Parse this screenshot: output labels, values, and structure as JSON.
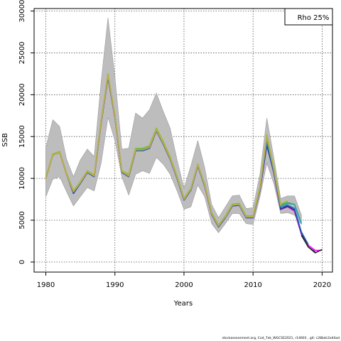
{
  "chart_data": {
    "type": "line",
    "xlabel": "Years",
    "ylabel": "SSB",
    "xlim": [
      1978.3,
      2021.5
    ],
    "ylim": [
      -1200,
      30300
    ],
    "x_ticks": [
      1980,
      1990,
      2000,
      2010,
      2020
    ],
    "y_ticks": [
      0,
      5000,
      10000,
      15000,
      20000,
      25000,
      30000
    ],
    "grid": true,
    "legend": {
      "placement": "top-right",
      "text": "Rho 25%"
    },
    "band": {
      "years": [
        1980,
        1981,
        1982,
        1983,
        1984,
        1985,
        1986,
        1987,
        1988,
        1989,
        1990,
        1991,
        1992,
        1993,
        1994,
        1995,
        1996,
        1997,
        1998,
        1999,
        2000,
        2001,
        2002,
        2003,
        2004,
        2005,
        2006,
        2007,
        2008,
        2009,
        2010,
        2011,
        2012,
        2013,
        2014,
        2015,
        2016,
        2017
      ],
      "lower": [
        7800,
        9900,
        10200,
        8400,
        6700,
        7800,
        8900,
        8500,
        11800,
        17300,
        14500,
        10200,
        8000,
        10500,
        10900,
        10600,
        12500,
        11700,
        10500,
        8500,
        6300,
        6600,
        9200,
        7800,
        4600,
        3500,
        4600,
        5800,
        5800,
        4600,
        4500,
        7800,
        11800,
        9400,
        5800,
        5900,
        5600,
        4500
      ],
      "upper": [
        13700,
        17000,
        16200,
        12300,
        10200,
        12200,
        13500,
        12600,
        21500,
        29200,
        22100,
        13500,
        13600,
        17800,
        17200,
        18200,
        20200,
        18000,
        16000,
        12200,
        8800,
        11500,
        14500,
        11300,
        6900,
        5300,
        6600,
        7900,
        8000,
        6400,
        6500,
        10500,
        17200,
        12500,
        7600,
        7900,
        7900,
        5600
      ]
    },
    "series": [
      {
        "color": "#ff00ff",
        "x": [
          1980,
          1981,
          1982,
          1983,
          1984,
          1985,
          1986,
          1987,
          1988,
          1989,
          1990,
          1991,
          1992,
          1993,
          1994,
          1995,
          1996,
          1997,
          1998,
          1999,
          2000,
          2001,
          2002,
          2003,
          2004,
          2005,
          2006,
          2007,
          2008,
          2009,
          2010,
          2011,
          2012,
          2013,
          2014,
          2015,
          2016,
          2017,
          2018,
          2019,
          2020
        ],
        "values": [
          10000,
          12800,
          13100,
          10500,
          8300,
          9400,
          10700,
          10200,
          16600,
          22100,
          17300,
          10700,
          10200,
          13300,
          13300,
          13600,
          15700,
          14100,
          12300,
          10000,
          7400,
          8600,
          11500,
          9100,
          5700,
          4200,
          5300,
          6700,
          6800,
          5300,
          5300,
          8600,
          14000,
          10700,
          6300,
          6600,
          6100,
          3300,
          2000,
          1400,
          1400
        ]
      },
      {
        "color": "#1f2a86",
        "x": [
          1980,
          1981,
          1982,
          1983,
          1984,
          1985,
          1986,
          1987,
          1988,
          1989,
          1990,
          1991,
          1992,
          1993,
          1994,
          1995,
          1996,
          1997,
          1998,
          1999,
          2000,
          2001,
          2002,
          2003,
          2004,
          2005,
          2006,
          2007,
          2008,
          2009,
          2010,
          2011,
          2012,
          2013,
          2014,
          2015,
          2016,
          2017,
          2018,
          2019
        ],
        "values": [
          10000,
          12800,
          13100,
          10500,
          8200,
          9400,
          10700,
          10200,
          16600,
          22100,
          17300,
          10700,
          10200,
          13300,
          13300,
          13600,
          15700,
          14100,
          12300,
          10000,
          7400,
          8600,
          11500,
          9100,
          5700,
          4200,
          5300,
          6700,
          6800,
          5300,
          5300,
          8600,
          14000,
          10700,
          6300,
          6700,
          6200,
          3400,
          1800,
          1200
        ]
      },
      {
        "color": "#2a63b8",
        "x": [
          1980,
          1981,
          1982,
          1983,
          1984,
          1985,
          1986,
          1987,
          1988,
          1989,
          1990,
          1991,
          1992,
          1993,
          1994,
          1995,
          1996,
          1997,
          1998,
          1999,
          2000,
          2001,
          2002,
          2003,
          2004,
          2005,
          2006,
          2007,
          2008,
          2009,
          2010,
          2011,
          2012,
          2013,
          2014,
          2015,
          2016,
          2017,
          2018
        ],
        "values": [
          10000,
          12800,
          13100,
          10500,
          8300,
          9400,
          10700,
          10200,
          16600,
          22200,
          17300,
          10700,
          10200,
          13300,
          13300,
          13600,
          15700,
          14100,
          12300,
          10000,
          7400,
          8600,
          11500,
          9100,
          5700,
          4200,
          5300,
          6700,
          6800,
          5300,
          5300,
          8700,
          14300,
          10800,
          6500,
          6800,
          6400,
          3600,
          2100
        ]
      },
      {
        "color": "#1aa3b0",
        "x": [
          1980,
          1981,
          1982,
          1983,
          1984,
          1985,
          1986,
          1987,
          1988,
          1989,
          1990,
          1991,
          1992,
          1993,
          1994,
          1995,
          1996,
          1997,
          1998,
          1999,
          2000,
          2001,
          2002,
          2003,
          2004,
          2005,
          2006,
          2007,
          2008,
          2009,
          2010,
          2011,
          2012,
          2013,
          2014,
          2015,
          2016,
          2017
        ],
        "values": [
          10000,
          12800,
          13100,
          10500,
          8400,
          9500,
          10800,
          10300,
          16700,
          22300,
          17400,
          10800,
          10300,
          13400,
          13500,
          13800,
          15900,
          14300,
          12400,
          10100,
          7500,
          8700,
          11600,
          9200,
          5800,
          4300,
          5400,
          6800,
          6900,
          5400,
          5400,
          8800,
          14600,
          11000,
          6700,
          7000,
          6900,
          4600
        ]
      },
      {
        "color": "#3fae6c",
        "x": [
          1980,
          1981,
          1982,
          1983,
          1984,
          1985,
          1986,
          1987,
          1988,
          1989,
          1990,
          1991,
          1992,
          1993,
          1994,
          1995,
          1996,
          1997,
          1998,
          1999,
          2000,
          2001,
          2002,
          2003,
          2004,
          2005,
          2006,
          2007,
          2008,
          2009,
          2010,
          2011,
          2012,
          2013,
          2014,
          2015,
          2016
        ],
        "values": [
          10100,
          12900,
          13200,
          10600,
          8500,
          9600,
          10900,
          10400,
          16800,
          22400,
          17500,
          10900,
          10400,
          13500,
          13600,
          13900,
          16000,
          14400,
          12500,
          10200,
          7600,
          8800,
          11700,
          9300,
          5900,
          4400,
          5500,
          6900,
          7000,
          5500,
          5500,
          8900,
          14900,
          11200,
          6800,
          7100,
          6900
        ]
      },
      {
        "color": "#8fbf2e",
        "x": [
          1980,
          1981,
          1982,
          1983,
          1984,
          1985,
          1986,
          1987,
          1988,
          1989,
          1990,
          1991,
          1992,
          1993,
          1994,
          1995,
          1996,
          1997,
          1998,
          1999,
          2000,
          2001,
          2002,
          2003,
          2004,
          2005,
          2006,
          2007,
          2008,
          2009,
          2010,
          2011,
          2012,
          2013,
          2014,
          2015
        ],
        "values": [
          10100,
          12900,
          13200,
          10600,
          8500,
          9600,
          10900,
          10400,
          16800,
          22500,
          17500,
          10900,
          10500,
          13600,
          13600,
          13900,
          16000,
          14400,
          12600,
          10200,
          7600,
          8800,
          11700,
          9300,
          5900,
          4400,
          5500,
          6900,
          7000,
          5500,
          5500,
          9000,
          15200,
          11300,
          6900,
          7300
        ]
      },
      {
        "color": "#c7a94a",
        "x": [
          1980,
          1981,
          1982,
          1983,
          1984,
          1985,
          1986,
          1987,
          1988,
          1989,
          1990,
          1991,
          1992,
          1993,
          1994,
          1995,
          1996,
          1997,
          1998,
          1999,
          2000,
          2001,
          2002,
          2003,
          2004,
          2005,
          2006,
          2007,
          2008,
          2009,
          2010,
          2011,
          2012,
          2013,
          2014
        ],
        "values": [
          10000,
          12800,
          13100,
          10500,
          8400,
          9500,
          10800,
          10300,
          16700,
          22300,
          17400,
          10800,
          10300,
          13400,
          13400,
          13700,
          15800,
          14200,
          12400,
          10100,
          7500,
          8700,
          11600,
          9200,
          5800,
          4300,
          5400,
          6800,
          6900,
          5400,
          5400,
          8800,
          15000,
          11100,
          6700
        ]
      },
      {
        "color": "#222222",
        "x": [
          2017,
          2018,
          2019,
          2020
        ],
        "values": [
          3200,
          1800,
          1100,
          1500
        ]
      }
    ]
  },
  "footer_text": "stockassessment.org, Cod_7ek_WGCSE2021, r14603 , git: c28bdc2a44ad"
}
